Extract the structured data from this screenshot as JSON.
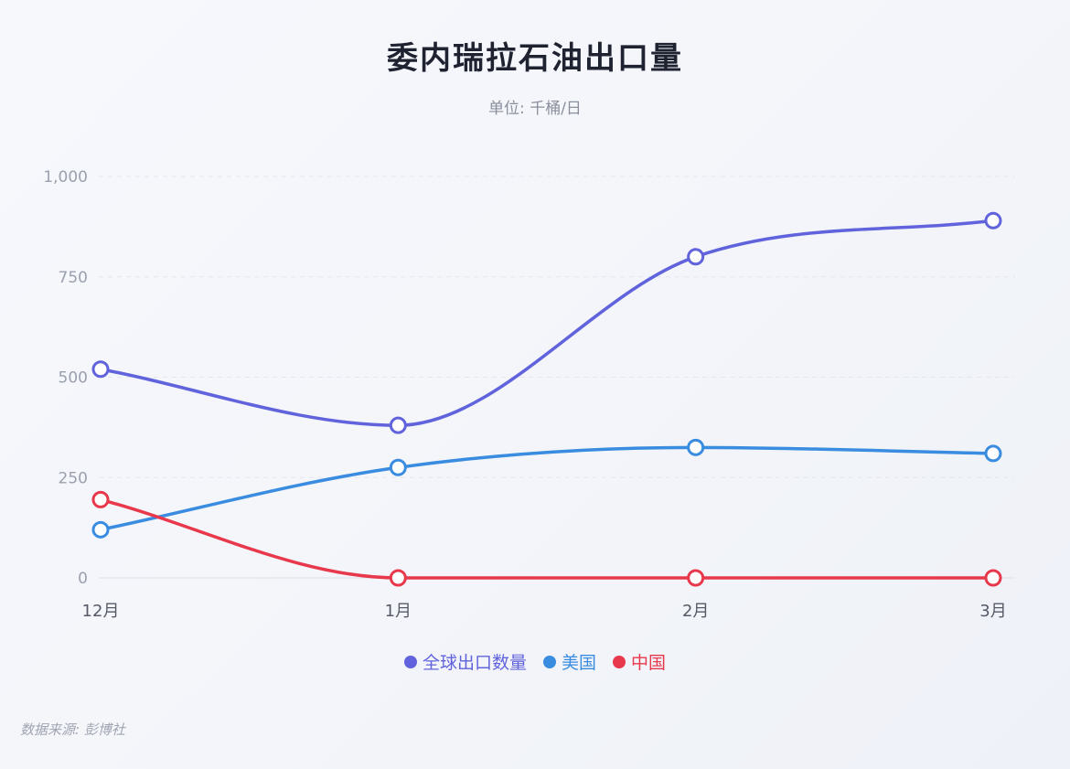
{
  "title": "委内瑞拉石油出口量",
  "subtitle": "单位: 千桶/日",
  "source": "数据来源: 彭博社",
  "colors": {
    "series_0": "#6163dc",
    "series_1": "#3a8ce0",
    "series_2": "#e8384c",
    "grid": "#e3e6ee",
    "axis_text": "#9aa0ad"
  },
  "chart_data": {
    "type": "line",
    "categories": [
      "12月",
      "1月",
      "2月",
      "3月"
    ],
    "yticks": [
      "0",
      "250",
      "500",
      "750",
      "1,000"
    ],
    "ylim": [
      0,
      1000
    ],
    "grid": true,
    "legend_position": "bottom",
    "series": [
      {
        "name": "全球出口数量",
        "values": [
          520,
          380,
          800,
          890
        ]
      },
      {
        "name": "美国",
        "values": [
          120,
          275,
          325,
          310
        ]
      },
      {
        "name": "中国",
        "values": [
          195,
          0,
          0,
          0
        ]
      }
    ]
  }
}
